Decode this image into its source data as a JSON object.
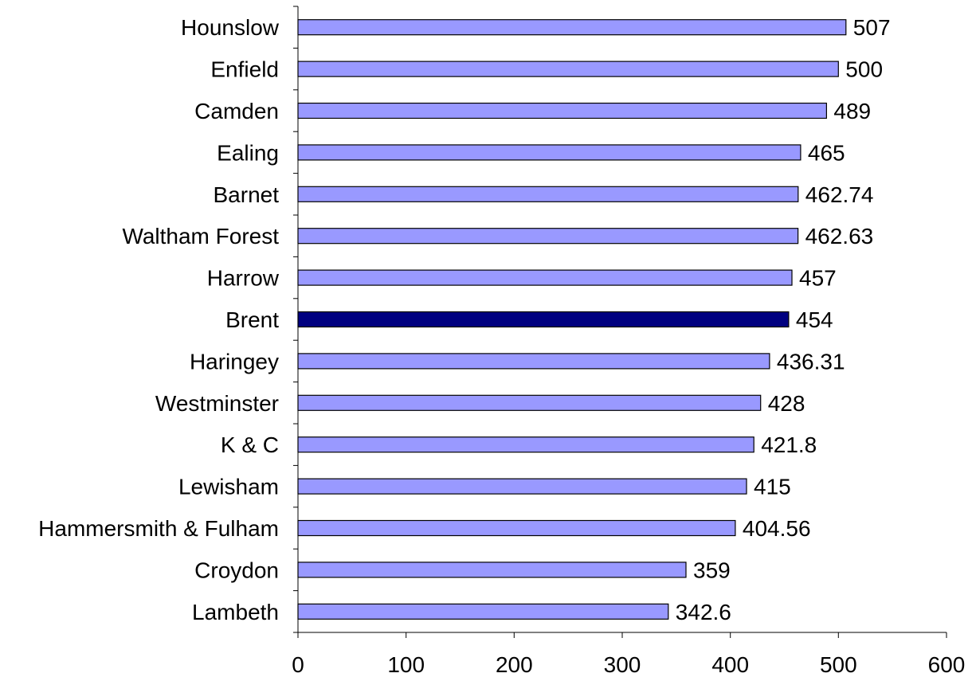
{
  "chart_data": {
    "type": "bar",
    "orientation": "horizontal",
    "categories": [
      "Hounslow",
      "Enfield",
      "Camden",
      "Ealing",
      "Barnet",
      "Waltham Forest",
      "Harrow",
      "Brent",
      "Haringey",
      "Westminster",
      "K & C",
      "Lewisham",
      "Hammersmith & Fulham",
      "Croydon",
      "Lambeth"
    ],
    "values": [
      507,
      500,
      489,
      465,
      462.74,
      462.63,
      457,
      454,
      436.31,
      428,
      421.8,
      415,
      404.56,
      359,
      342.6
    ],
    "value_labels": [
      "507",
      "500",
      "489",
      "465",
      "462.74",
      "462.63",
      "457",
      "454",
      "436.31",
      "428",
      "421.8",
      "415",
      "404.56",
      "359",
      "342.6"
    ],
    "highlight": "Brent",
    "xlim": [
      0,
      600
    ],
    "xticks": [
      0,
      100,
      200,
      300,
      400,
      500,
      600
    ],
    "xtick_labels": [
      "0",
      "100",
      "200",
      "300",
      "400",
      "500",
      "600"
    ],
    "title": "",
    "xlabel": "",
    "ylabel": "",
    "grid": false,
    "legend": "none",
    "colors": {
      "bar": "#9999ff",
      "highlight": "#000080",
      "outline": "#000000"
    }
  }
}
